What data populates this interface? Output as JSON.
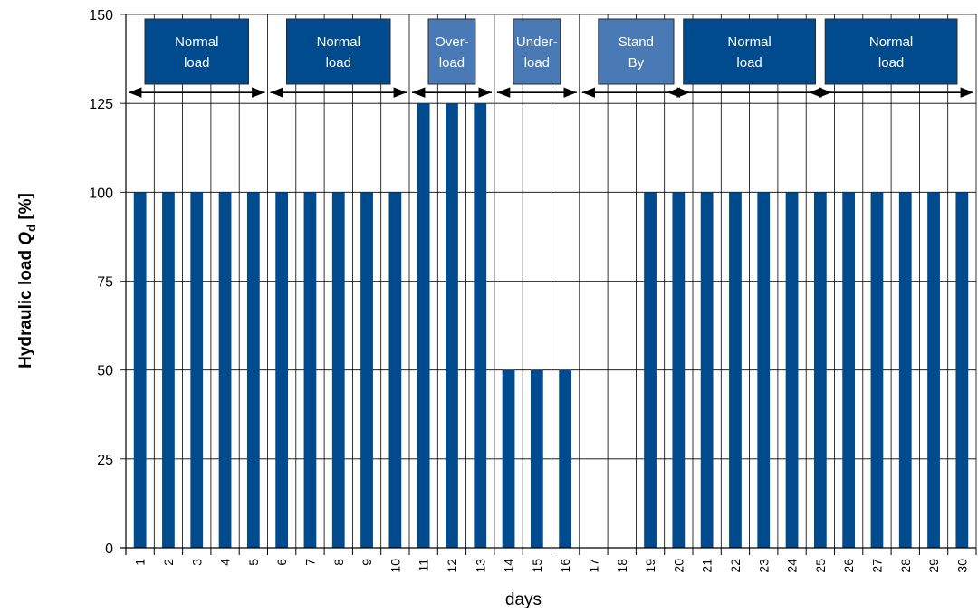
{
  "chart_data": {
    "type": "bar",
    "title": "",
    "xlabel": "days",
    "ylabel": {
      "prefix": "Hydraulic load ",
      "symbol": "Q",
      "subscript": "d",
      "unit": " [%]"
    },
    "categories": [
      "1",
      "2",
      "3",
      "4",
      "5",
      "6",
      "7",
      "8",
      "9",
      "10",
      "11",
      "12",
      "13",
      "14",
      "15",
      "16",
      "17",
      "18",
      "19",
      "20",
      "21",
      "22",
      "23",
      "24",
      "25",
      "26",
      "27",
      "28",
      "29",
      "30"
    ],
    "values": [
      100,
      100,
      100,
      100,
      100,
      100,
      100,
      100,
      100,
      100,
      125,
      125,
      125,
      50,
      50,
      50,
      0,
      0,
      100,
      100,
      100,
      100,
      100,
      100,
      100,
      100,
      100,
      100,
      100,
      100
    ],
    "ylim": [
      0,
      150
    ],
    "yticks": [
      0,
      25,
      50,
      75,
      100,
      125,
      150
    ],
    "grid": true,
    "bar_color": "#004b8d",
    "phases": [
      {
        "line1": "Normal",
        "line2": "load",
        "start_day": 1,
        "end_day": 5,
        "color": "#004b8d"
      },
      {
        "line1": "Normal",
        "line2": "load",
        "start_day": 6,
        "end_day": 10,
        "color": "#004b8d"
      },
      {
        "line1": "Over-",
        "line2": "load",
        "start_day": 11,
        "end_day": 13,
        "color": "#4a7ab6"
      },
      {
        "line1": "Under-",
        "line2": "load",
        "start_day": 14,
        "end_day": 16,
        "color": "#4a7ab6"
      },
      {
        "line1": "Stand",
        "line2": "By",
        "start_day": 17,
        "end_day": 20,
        "color": "#4a7ab6"
      },
      {
        "line1": "Normal",
        "line2": "load",
        "start_day": 20,
        "end_day": 25,
        "color": "#004b8d"
      },
      {
        "line1": "Normal",
        "line2": "load",
        "start_day": 25,
        "end_day": 30,
        "color": "#004b8d"
      }
    ]
  }
}
